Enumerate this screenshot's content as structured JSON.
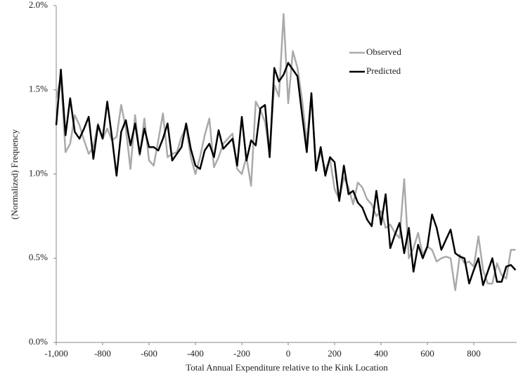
{
  "chart_data": {
    "type": "line",
    "x_label": "Total Annual Expenditure relative to the Kink Location",
    "y_label": "(Normalized)  Frequency",
    "x": [
      -1000,
      -980,
      -960,
      -940,
      -920,
      -900,
      -880,
      -860,
      -840,
      -820,
      -800,
      -780,
      -760,
      -740,
      -720,
      -700,
      -680,
      -660,
      -640,
      -620,
      -600,
      -580,
      -560,
      -540,
      -520,
      -500,
      -480,
      -460,
      -440,
      -420,
      -400,
      -380,
      -360,
      -340,
      -320,
      -300,
      -280,
      -260,
      -240,
      -220,
      -200,
      -180,
      -160,
      -140,
      -120,
      -100,
      -80,
      -60,
      -40,
      -20,
      0,
      20,
      40,
      60,
      80,
      100,
      120,
      140,
      160,
      180,
      200,
      220,
      240,
      260,
      280,
      300,
      320,
      340,
      360,
      380,
      400,
      420,
      440,
      460,
      480,
      500,
      520,
      540,
      560,
      580,
      600,
      620,
      640,
      660,
      680,
      700,
      720,
      740,
      760,
      780,
      800,
      820,
      840,
      860,
      880,
      900,
      920,
      940,
      960,
      980
    ],
    "series": [
      {
        "name": "Observed",
        "color": "#aaaaaa",
        "width": 2.5,
        "values": [
          1.45,
          1.58,
          1.13,
          1.18,
          1.35,
          1.29,
          1.2,
          1.12,
          1.16,
          1.3,
          1.21,
          1.27,
          1.2,
          1.22,
          1.41,
          1.27,
          1.03,
          1.35,
          1.11,
          1.33,
          1.08,
          1.05,
          1.2,
          1.36,
          1.1,
          1.12,
          1.13,
          1.22,
          1.28,
          1.1,
          1.0,
          1.1,
          1.23,
          1.33,
          1.04,
          1.1,
          1.18,
          1.21,
          1.24,
          1.03,
          1.0,
          1.1,
          0.93,
          1.43,
          1.38,
          1.31,
          1.12,
          1.53,
          1.46,
          1.95,
          1.42,
          1.73,
          1.63,
          1.44,
          1.19,
          1.47,
          1.04,
          1.13,
          1.02,
          1.09,
          0.91,
          0.85,
          0.98,
          0.92,
          0.82,
          0.95,
          0.92,
          0.85,
          0.82,
          0.75,
          0.78,
          0.68,
          0.7,
          0.65,
          0.62,
          0.97,
          0.5,
          0.56,
          0.65,
          0.52,
          0.57,
          0.55,
          0.48,
          0.5,
          0.51,
          0.5,
          0.31,
          0.52,
          0.47,
          0.48,
          0.45,
          0.63,
          0.43,
          0.35,
          0.35,
          0.47,
          0.4,
          0.38,
          0.55,
          0.55
        ]
      },
      {
        "name": "Predicted",
        "color": "#000000",
        "width": 2.5,
        "values": [
          1.29,
          1.62,
          1.23,
          1.45,
          1.25,
          1.21,
          1.27,
          1.34,
          1.09,
          1.29,
          1.21,
          1.43,
          1.22,
          0.99,
          1.25,
          1.32,
          1.17,
          1.3,
          1.12,
          1.27,
          1.16,
          1.16,
          1.14,
          1.21,
          1.3,
          1.08,
          1.12,
          1.16,
          1.3,
          1.15,
          1.05,
          1.03,
          1.14,
          1.18,
          1.1,
          1.26,
          1.15,
          1.18,
          1.21,
          1.05,
          1.34,
          1.08,
          1.2,
          1.17,
          1.39,
          1.41,
          1.1,
          1.63,
          1.55,
          1.59,
          1.66,
          1.62,
          1.58,
          1.35,
          1.13,
          1.48,
          1.02,
          1.16,
          0.99,
          1.1,
          1.07,
          0.84,
          1.05,
          0.88,
          0.9,
          0.83,
          0.8,
          0.73,
          0.69,
          0.9,
          0.7,
          0.88,
          0.56,
          0.64,
          0.71,
          0.53,
          0.68,
          0.42,
          0.58,
          0.5,
          0.57,
          0.76,
          0.68,
          0.55,
          0.61,
          0.67,
          0.53,
          0.51,
          0.5,
          0.35,
          0.43,
          0.5,
          0.34,
          0.42,
          0.5,
          0.36,
          0.36,
          0.45,
          0.46,
          0.43
        ]
      }
    ],
    "xlim": [
      -1000,
      985
    ],
    "xticks": [
      {
        "value": -1000,
        "label": "-1,000"
      },
      -800,
      -600,
      -400,
      -200,
      0,
      200,
      400,
      600,
      800
    ],
    "ylim": [
      0,
      2
    ],
    "yticks": [
      {
        "value": 0,
        "label": "0.0%"
      },
      {
        "value": 0.5,
        "label": "0.5%"
      },
      {
        "value": 1,
        "label": "1.0%"
      },
      {
        "value": 1.5,
        "label": "1.5%"
      },
      {
        "value": 2,
        "label": "2.0%"
      }
    ],
    "grid": false,
    "legend": "upper right"
  }
}
